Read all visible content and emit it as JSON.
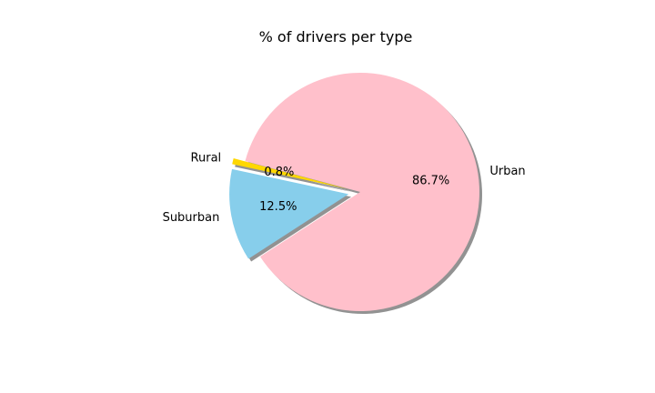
{
  "chart_data": {
    "type": "pie",
    "title": "% of drivers per type",
    "slices": [
      {
        "label": "Rural",
        "value": 0.8,
        "pct_label": "0.8%",
        "color": "#FFD700",
        "exploded": true
      },
      {
        "label": "Suburban",
        "value": 12.5,
        "pct_label": "12.5%",
        "color": "#87CEEB",
        "exploded": true
      },
      {
        "label": "Urban",
        "value": 86.7,
        "pct_label": "86.7%",
        "color": "#FFC0CB",
        "exploded": false
      }
    ],
    "start_angle_deg": 165,
    "shadow": true
  }
}
